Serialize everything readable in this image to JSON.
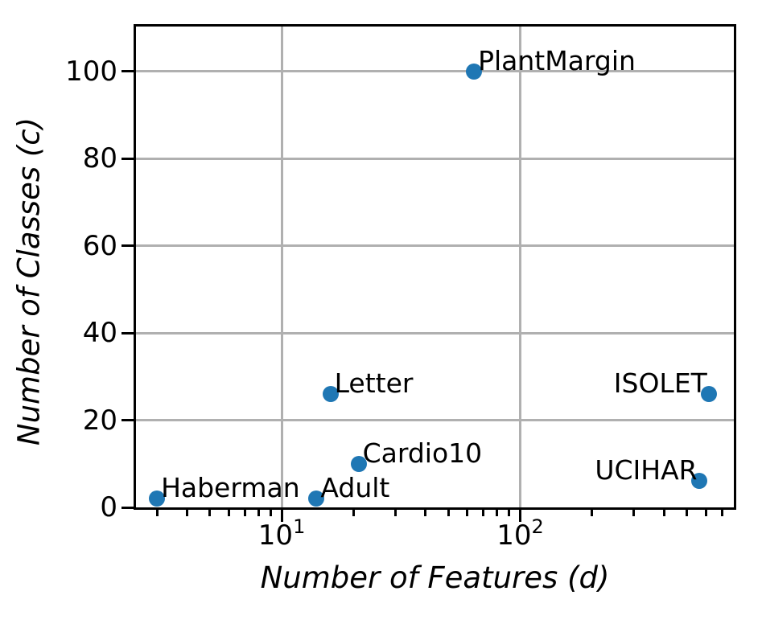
{
  "chart_data": {
    "type": "scatter",
    "title": "",
    "xlabel": "Number of Features (d)",
    "ylabel": "Number of Classes (c)",
    "xscale": "log",
    "yscale": "linear",
    "xlim": [
      2.45,
      786
    ],
    "ylim": [
      0,
      110.3
    ],
    "grid": true,
    "legend": false,
    "marker_color": "#1f77b4",
    "grid_color": "#b0b0b0",
    "points": [
      {
        "name": "Haberman",
        "x": 3,
        "y": 2,
        "label_side": "right"
      },
      {
        "name": "Adult",
        "x": 14,
        "y": 2,
        "label_side": "right"
      },
      {
        "name": "Letter",
        "x": 16,
        "y": 26,
        "label_side": "right"
      },
      {
        "name": "Cardio10",
        "x": 21,
        "y": 10,
        "label_side": "right"
      },
      {
        "name": "PlantMargin",
        "x": 64,
        "y": 100,
        "label_side": "right"
      },
      {
        "name": "ISOLET",
        "x": 617,
        "y": 26,
        "label_side": "left"
      },
      {
        "name": "UCIHAR",
        "x": 561,
        "y": 6,
        "label_side": "left"
      }
    ],
    "yticks": [
      0,
      20,
      40,
      60,
      80,
      100
    ],
    "xticks": [
      {
        "value": 10,
        "label_base": "10",
        "label_exp": "1"
      },
      {
        "value": 100,
        "label_base": "10",
        "label_exp": "2"
      }
    ],
    "xticks_minor": [
      3,
      4,
      5,
      6,
      7,
      8,
      9,
      20,
      30,
      40,
      50,
      60,
      70,
      80,
      90,
      200,
      300,
      400,
      500,
      600,
      700
    ]
  }
}
